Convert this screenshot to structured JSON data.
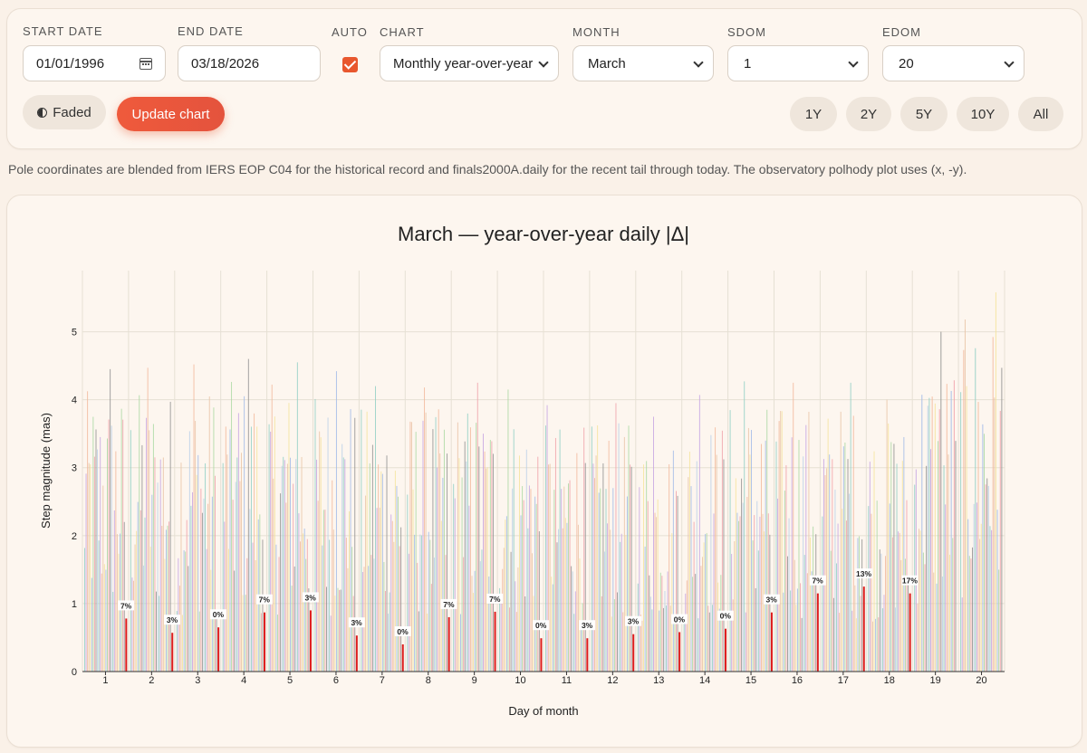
{
  "controls": {
    "start_date_label": "START DATE",
    "start_date_value": "01/01/1996",
    "end_date_label": "END DATE",
    "end_date_value": "03/18/2026",
    "auto_label": "AUTO",
    "auto_checked": true,
    "chart_label": "CHART",
    "chart_value": "Monthly year-over-year",
    "month_label": "MONTH",
    "month_value": "March",
    "sdom_label": "SDOM",
    "sdom_value": "1",
    "edom_label": "EDOM",
    "edom_value": "20",
    "faded_label": "Faded",
    "update_label": "Update chart",
    "ranges": [
      "1Y",
      "2Y",
      "5Y",
      "10Y",
      "All"
    ]
  },
  "note": "Pole coordinates are blended from IERS EOP C04 for the historical record and finals2000A.daily for the recent tail through today. The observatory polhody plot uses (x, -y).",
  "colors": {
    "accent": "#e8572e",
    "highlight_bar": "#dd1c1c",
    "palette": [
      "#8fcfc4",
      "#c6a3e2",
      "#f2b79a",
      "#e9c3a4",
      "#f5e39a",
      "#9fb9e8",
      "#a9d8a1",
      "#f0a0a8",
      "#8f8f8f",
      "#b8cfe8"
    ]
  },
  "chart_data": {
    "type": "bar",
    "title": "March — year-over-year daily |Δ|",
    "xlabel": "Day of month",
    "ylabel": "Step magnitude (mas)",
    "ylim": [
      0,
      5.9
    ],
    "yticks": [
      0,
      1,
      2,
      3,
      4,
      5
    ],
    "categories": [
      "1",
      "2",
      "3",
      "4",
      "5",
      "6",
      "7",
      "8",
      "9",
      "10",
      "11",
      "12",
      "13",
      "14",
      "15",
      "16",
      "17",
      "18",
      "19",
      "20"
    ],
    "max_per_day": [
      4.45,
      4.47,
      4.52,
      4.6,
      4.55,
      4.42,
      4.2,
      4.18,
      4.25,
      4.15,
      3.92,
      3.95,
      3.75,
      4.07,
      4.27,
      4.25,
      4.25,
      4.0,
      5.0,
      5.58
    ],
    "current_year_step": [
      0.78,
      0.57,
      0.65,
      0.87,
      0.9,
      0.53,
      0.4,
      0.8,
      0.88,
      0.49,
      0.49,
      0.55,
      0.58,
      0.63,
      0.87,
      1.15,
      1.25,
      1.15,
      null,
      null
    ],
    "percentile_labels": [
      "7%",
      "3%",
      "0%",
      "7%",
      "3%",
      "3%",
      "0%",
      "7%",
      "7%",
      "0%",
      "3%",
      "3%",
      "0%",
      "0%",
      "3%",
      "7%",
      "13%",
      "17%",
      null,
      null
    ]
  }
}
